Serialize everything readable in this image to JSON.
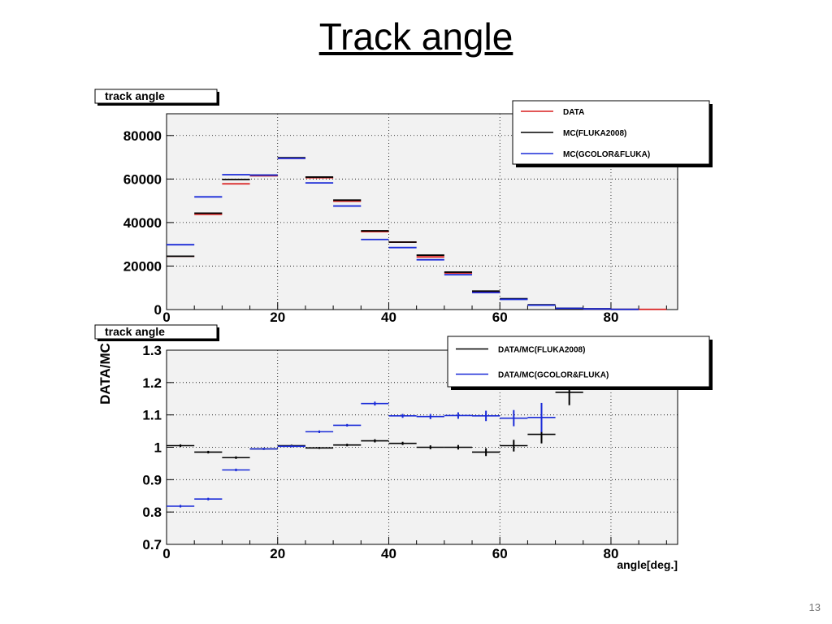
{
  "slide": {
    "title": "Track angle",
    "number": "13"
  },
  "colors": {
    "data": "#d81e1e",
    "mc_fluka": "#000000",
    "mc_gcolor": "#1a2bd8",
    "frame_bg": "#f2f2f2"
  },
  "chart_data": [
    {
      "type": "line",
      "title": "track angle",
      "xlabel": "",
      "ylabel": "",
      "xlim": [
        0,
        92
      ],
      "ylim": [
        0,
        90000
      ],
      "grid": true,
      "legend_position": "top-right",
      "xticks": [
        "0",
        "20",
        "40",
        "60",
        "80"
      ],
      "yticks": [
        "0",
        "20000",
        "40000",
        "60000",
        "80000"
      ],
      "bins": [
        [
          0,
          5
        ],
        [
          5,
          10
        ],
        [
          10,
          15
        ],
        [
          15,
          20
        ],
        [
          20,
          25
        ],
        [
          25,
          30
        ],
        [
          30,
          35
        ],
        [
          35,
          40
        ],
        [
          40,
          45
        ],
        [
          45,
          50
        ],
        [
          50,
          55
        ],
        [
          55,
          60
        ],
        [
          60,
          65
        ],
        [
          65,
          70
        ],
        [
          70,
          75
        ],
        [
          75,
          80
        ],
        [
          80,
          85
        ],
        [
          85,
          90
        ]
      ],
      "series": [
        {
          "name": "DATA",
          "color": "#d81e1e",
          "values": [
            24500,
            43800,
            57800,
            61500,
            69500,
            60600,
            49800,
            35800,
            31000,
            24200,
            16800,
            8200,
            4800,
            2000,
            500,
            300,
            100,
            80
          ]
        },
        {
          "name": "MC(FLUKA2008)",
          "color": "#000000",
          "values": [
            24500,
            44300,
            59800,
            61800,
            69800,
            60900,
            50300,
            36200,
            31000,
            25000,
            17200,
            8500,
            5000,
            2200,
            600,
            300,
            100,
            0
          ]
        },
        {
          "name": "MC(GCOLOR&FLUKA)",
          "color": "#1a2bd8",
          "values": [
            29800,
            51800,
            62000,
            61800,
            69500,
            58200,
            47600,
            32200,
            28500,
            22900,
            16000,
            7800,
            4700,
            2000,
            550,
            300,
            100,
            0
          ]
        }
      ]
    },
    {
      "type": "scatter",
      "title": "track angle",
      "xlabel": "angle[deg.]",
      "ylabel": "DATA/MC",
      "xlim": [
        0,
        92
      ],
      "ylim": [
        0.7,
        1.3
      ],
      "grid": true,
      "legend_position": "top-right",
      "xticks": [
        "0",
        "20",
        "40",
        "60",
        "80"
      ],
      "yticks": [
        "0.7",
        "0.8",
        "0.9",
        "1",
        "1.1",
        "1.2",
        "1.3"
      ],
      "series": [
        {
          "name": "DATA/MC(FLUKA2008)",
          "color": "#000000",
          "x": [
            2.5,
            7.5,
            12.5,
            17.5,
            22.5,
            27.5,
            32.5,
            37.5,
            42.5,
            47.5,
            52.5,
            57.5,
            62.5,
            67.5,
            72.5
          ],
          "y": [
            1.005,
            0.985,
            0.968,
            0.995,
            1.005,
            0.998,
            1.007,
            1.02,
            1.012,
            1.0,
            1.0,
            0.985,
            1.005,
            1.04,
            1.17
          ],
          "yerr": [
            0.004,
            0.004,
            0.004,
            0.003,
            0.003,
            0.003,
            0.004,
            0.005,
            0.005,
            0.006,
            0.007,
            0.012,
            0.018,
            0.028,
            0.04
          ]
        },
        {
          "name": "DATA/MC(GCOLOR&FLUKA)",
          "color": "#1a2bd8",
          "x": [
            2.5,
            7.5,
            12.5,
            17.5,
            22.5,
            27.5,
            32.5,
            37.5,
            42.5,
            47.5,
            52.5,
            57.5,
            62.5,
            67.5
          ],
          "y": [
            0.818,
            0.84,
            0.93,
            0.995,
            1.003,
            1.048,
            1.068,
            1.135,
            1.097,
            1.095,
            1.098,
            1.097,
            1.09,
            1.092
          ],
          "yerr": [
            0.004,
            0.004,
            0.004,
            0.003,
            0.003,
            0.004,
            0.004,
            0.006,
            0.006,
            0.008,
            0.01,
            0.016,
            0.025,
            0.045
          ]
        }
      ]
    }
  ]
}
